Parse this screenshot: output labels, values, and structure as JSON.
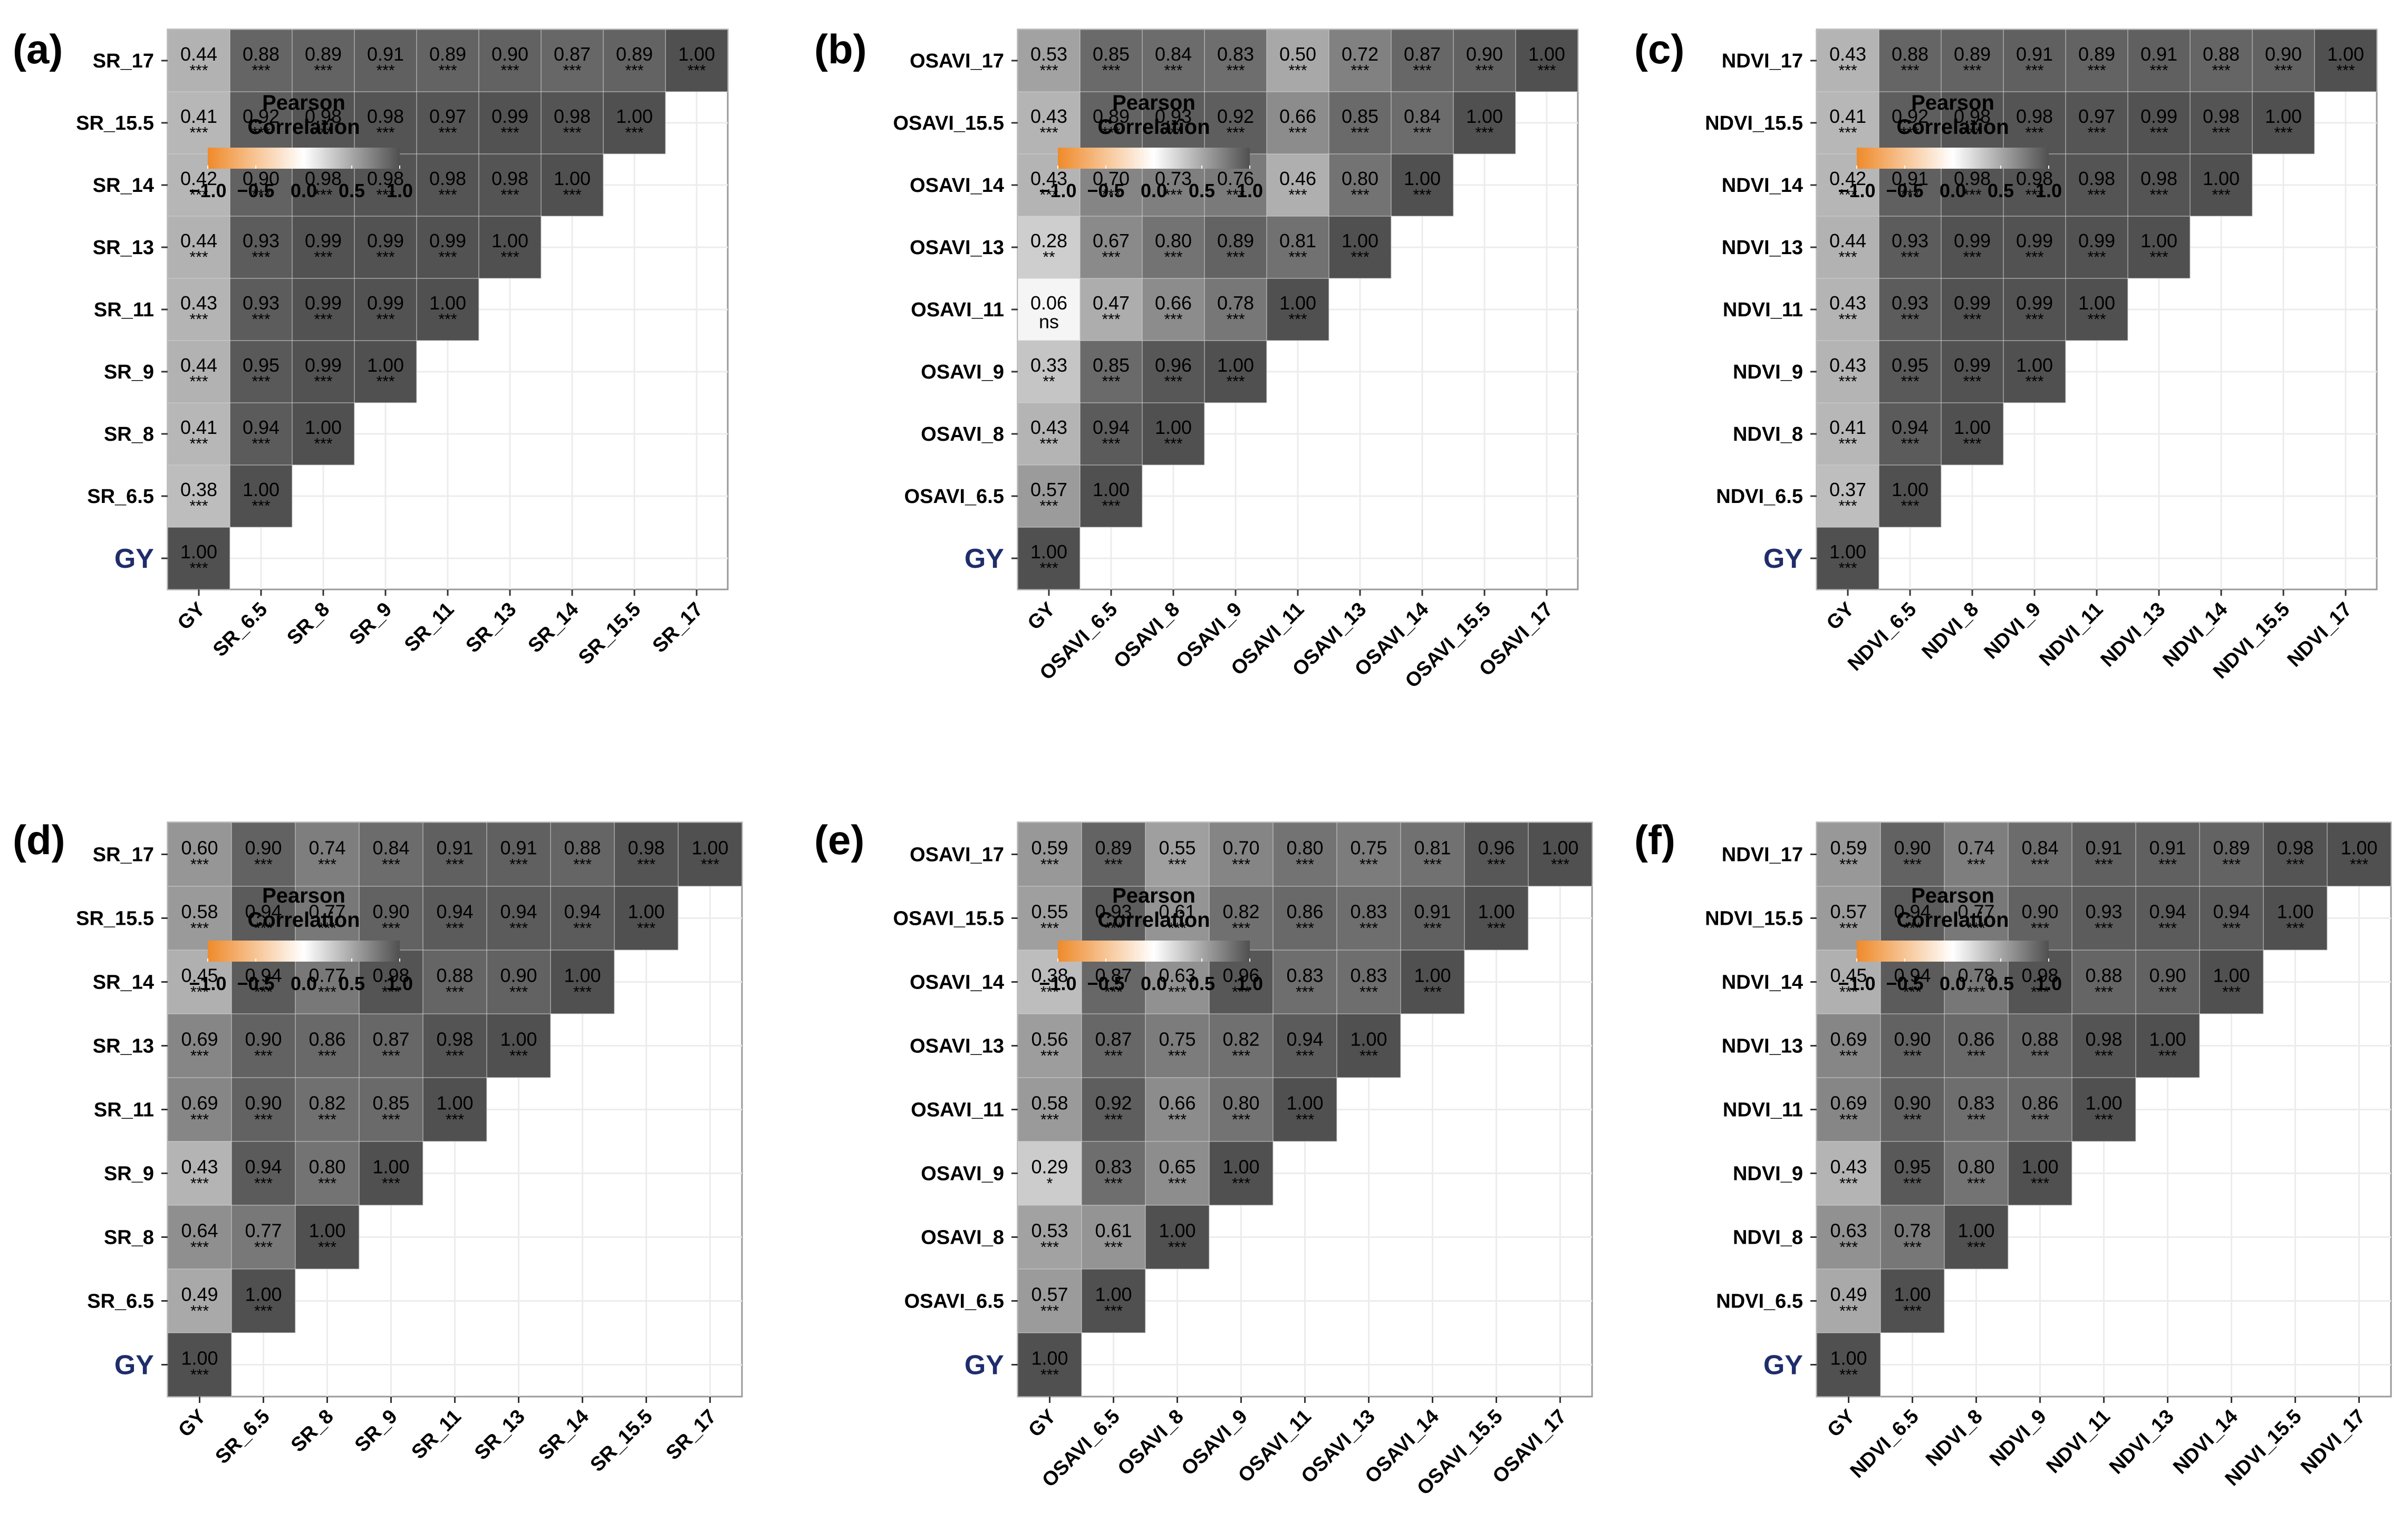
{
  "legend": {
    "title_line1": "Pearson",
    "title_line2": "Correlation",
    "ticks": [
      "−1.0",
      "−0.5",
      "0.0",
      "0.5",
      "1.0"
    ]
  },
  "colors": {
    "negative": "#ef8a2a",
    "zero": "#ffffff",
    "positive": "#505050",
    "y_label_target": "#1f2d6b"
  },
  "chart_data": [
    {
      "panel": "(a)",
      "type": "heatmap",
      "variables": [
        "GY",
        "SR_6.5",
        "SR_8",
        "SR_9",
        "SR_11",
        "SR_13",
        "SR_14",
        "SR_15.5",
        "SR_17"
      ],
      "values": [
        [
          1.0
        ],
        [
          0.38,
          1.0
        ],
        [
          0.41,
          0.94,
          1.0
        ],
        [
          0.44,
          0.95,
          0.99,
          1.0
        ],
        [
          0.43,
          0.93,
          0.99,
          0.99,
          1.0
        ],
        [
          0.44,
          0.93,
          0.99,
          0.99,
          0.99,
          1.0
        ],
        [
          0.42,
          0.9,
          0.98,
          0.98,
          0.98,
          0.98,
          1.0
        ],
        [
          0.41,
          0.92,
          0.98,
          0.98,
          0.97,
          0.99,
          0.98,
          1.0
        ],
        [
          0.44,
          0.88,
          0.89,
          0.91,
          0.89,
          0.9,
          0.87,
          0.89,
          1.0
        ]
      ],
      "significance": [
        [
          "***"
        ],
        [
          "***",
          "***"
        ],
        [
          "***",
          "***",
          "***"
        ],
        [
          "***",
          "***",
          "***",
          "***"
        ],
        [
          "***",
          "***",
          "***",
          "***",
          "***"
        ],
        [
          "***",
          "***",
          "***",
          "***",
          "***",
          "***"
        ],
        [
          "***",
          "***",
          "***",
          "***",
          "***",
          "***",
          "***"
        ],
        [
          "***",
          "***",
          "***",
          "***",
          "***",
          "***",
          "***",
          "***"
        ],
        [
          "***",
          "***",
          "***",
          "***",
          "***",
          "***",
          "***",
          "***",
          "***"
        ]
      ]
    },
    {
      "panel": "(b)",
      "type": "heatmap",
      "variables": [
        "GY",
        "OSAVI_6.5",
        "OSAVI_8",
        "OSAVI_9",
        "OSAVI_11",
        "OSAVI_13",
        "OSAVI_14",
        "OSAVI_15.5",
        "OSAVI_17"
      ],
      "values": [
        [
          1.0
        ],
        [
          0.57,
          1.0
        ],
        [
          0.43,
          0.94,
          1.0
        ],
        [
          0.33,
          0.85,
          0.96,
          1.0
        ],
        [
          0.06,
          0.47,
          0.66,
          0.78,
          1.0
        ],
        [
          0.28,
          0.67,
          0.8,
          0.89,
          0.81,
          1.0
        ],
        [
          0.43,
          0.7,
          0.73,
          0.76,
          0.46,
          0.8,
          1.0
        ],
        [
          0.43,
          0.89,
          0.93,
          0.92,
          0.66,
          0.85,
          0.84,
          1.0
        ],
        [
          0.53,
          0.85,
          0.84,
          0.83,
          0.5,
          0.72,
          0.87,
          0.9,
          1.0
        ]
      ],
      "significance": [
        [
          "***"
        ],
        [
          "***",
          "***"
        ],
        [
          "***",
          "***",
          "***"
        ],
        [
          "**",
          "***",
          "***",
          "***"
        ],
        [
          "ns",
          "***",
          "***",
          "***",
          "***"
        ],
        [
          "**",
          "***",
          "***",
          "***",
          "***",
          "***"
        ],
        [
          "***",
          "***",
          "***",
          "***",
          "***",
          "***",
          "***"
        ],
        [
          "***",
          "***",
          "***",
          "***",
          "***",
          "***",
          "***",
          "***"
        ],
        [
          "***",
          "***",
          "***",
          "***",
          "***",
          "***",
          "***",
          "***",
          "***"
        ]
      ]
    },
    {
      "panel": "(c)",
      "type": "heatmap",
      "variables": [
        "GY",
        "NDVI_6.5",
        "NDVI_8",
        "NDVI_9",
        "NDVI_11",
        "NDVI_13",
        "NDVI_14",
        "NDVI_15.5",
        "NDVI_17"
      ],
      "values": [
        [
          1.0
        ],
        [
          0.37,
          1.0
        ],
        [
          0.41,
          0.94,
          1.0
        ],
        [
          0.43,
          0.95,
          0.99,
          1.0
        ],
        [
          0.43,
          0.93,
          0.99,
          0.99,
          1.0
        ],
        [
          0.44,
          0.93,
          0.99,
          0.99,
          0.99,
          1.0
        ],
        [
          0.42,
          0.91,
          0.98,
          0.98,
          0.98,
          0.98,
          1.0
        ],
        [
          0.41,
          0.92,
          0.98,
          0.98,
          0.97,
          0.99,
          0.98,
          1.0
        ],
        [
          0.43,
          0.88,
          0.89,
          0.91,
          0.89,
          0.91,
          0.88,
          0.9,
          1.0
        ]
      ],
      "significance": [
        [
          "***"
        ],
        [
          "***",
          "***"
        ],
        [
          "***",
          "***",
          "***"
        ],
        [
          "***",
          "***",
          "***",
          "***"
        ],
        [
          "***",
          "***",
          "***",
          "***",
          "***"
        ],
        [
          "***",
          "***",
          "***",
          "***",
          "***",
          "***"
        ],
        [
          "***",
          "***",
          "***",
          "***",
          "***",
          "***",
          "***"
        ],
        [
          "***",
          "***",
          "***",
          "***",
          "***",
          "***",
          "***",
          "***"
        ],
        [
          "***",
          "***",
          "***",
          "***",
          "***",
          "***",
          "***",
          "***",
          "***"
        ]
      ]
    },
    {
      "panel": "(d)",
      "type": "heatmap",
      "variables": [
        "GY",
        "SR_6.5",
        "SR_8",
        "SR_9",
        "SR_11",
        "SR_13",
        "SR_14",
        "SR_15.5",
        "SR_17"
      ],
      "values": [
        [
          1.0
        ],
        [
          0.49,
          1.0
        ],
        [
          0.64,
          0.77,
          1.0
        ],
        [
          0.43,
          0.94,
          0.8,
          1.0
        ],
        [
          0.69,
          0.9,
          0.82,
          0.85,
          1.0
        ],
        [
          0.69,
          0.9,
          0.86,
          0.87,
          0.98,
          1.0
        ],
        [
          0.45,
          0.94,
          0.77,
          0.98,
          0.88,
          0.9,
          1.0
        ],
        [
          0.58,
          0.94,
          0.77,
          0.9,
          0.94,
          0.94,
          0.94,
          1.0
        ],
        [
          0.6,
          0.9,
          0.74,
          0.84,
          0.91,
          0.91,
          0.88,
          0.98,
          1.0
        ]
      ],
      "significance": [
        [
          "***"
        ],
        [
          "***",
          "***"
        ],
        [
          "***",
          "***",
          "***"
        ],
        [
          "***",
          "***",
          "***",
          "***"
        ],
        [
          "***",
          "***",
          "***",
          "***",
          "***"
        ],
        [
          "***",
          "***",
          "***",
          "***",
          "***",
          "***"
        ],
        [
          "***",
          "***",
          "***",
          "***",
          "***",
          "***",
          "***"
        ],
        [
          "***",
          "***",
          "***",
          "***",
          "***",
          "***",
          "***",
          "***"
        ],
        [
          "***",
          "***",
          "***",
          "***",
          "***",
          "***",
          "***",
          "***",
          "***"
        ]
      ]
    },
    {
      "panel": "(e)",
      "type": "heatmap",
      "variables": [
        "GY",
        "OSAVI_6.5",
        "OSAVI_8",
        "OSAVI_9",
        "OSAVI_11",
        "OSAVI_13",
        "OSAVI_14",
        "OSAVI_15.5",
        "OSAVI_17"
      ],
      "values": [
        [
          1.0
        ],
        [
          0.57,
          1.0
        ],
        [
          0.53,
          0.61,
          1.0
        ],
        [
          0.29,
          0.83,
          0.65,
          1.0
        ],
        [
          0.58,
          0.92,
          0.66,
          0.8,
          1.0
        ],
        [
          0.56,
          0.87,
          0.75,
          0.82,
          0.94,
          1.0
        ],
        [
          0.38,
          0.87,
          0.63,
          0.96,
          0.83,
          0.83,
          1.0
        ],
        [
          0.55,
          0.93,
          0.61,
          0.82,
          0.86,
          0.83,
          0.91,
          1.0
        ],
        [
          0.59,
          0.89,
          0.55,
          0.7,
          0.8,
          0.75,
          0.81,
          0.96,
          1.0
        ]
      ],
      "significance": [
        [
          "***"
        ],
        [
          "***",
          "***"
        ],
        [
          "***",
          "***",
          "***"
        ],
        [
          "*",
          "***",
          "***",
          "***"
        ],
        [
          "***",
          "***",
          "***",
          "***",
          "***"
        ],
        [
          "***",
          "***",
          "***",
          "***",
          "***",
          "***"
        ],
        [
          "***",
          "***",
          "***",
          "***",
          "***",
          "***",
          "***"
        ],
        [
          "***",
          "***",
          "***",
          "***",
          "***",
          "***",
          "***",
          "***"
        ],
        [
          "***",
          "***",
          "***",
          "***",
          "***",
          "***",
          "***",
          "***",
          "***"
        ]
      ]
    },
    {
      "panel": "(f)",
      "type": "heatmap",
      "variables": [
        "GY",
        "NDVI_6.5",
        "NDVI_8",
        "NDVI_9",
        "NDVI_11",
        "NDVI_13",
        "NDVI_14",
        "NDVI_15.5",
        "NDVI_17"
      ],
      "values": [
        [
          1.0
        ],
        [
          0.49,
          1.0
        ],
        [
          0.63,
          0.78,
          1.0
        ],
        [
          0.43,
          0.95,
          0.8,
          1.0
        ],
        [
          0.69,
          0.9,
          0.83,
          0.86,
          1.0
        ],
        [
          0.69,
          0.9,
          0.86,
          0.88,
          0.98,
          1.0
        ],
        [
          0.45,
          0.94,
          0.78,
          0.98,
          0.88,
          0.9,
          1.0
        ],
        [
          0.57,
          0.94,
          0.77,
          0.9,
          0.93,
          0.94,
          0.94,
          1.0
        ],
        [
          0.59,
          0.9,
          0.74,
          0.84,
          0.91,
          0.91,
          0.89,
          0.98,
          1.0
        ]
      ],
      "significance": [
        [
          "***"
        ],
        [
          "***",
          "***"
        ],
        [
          "***",
          "***",
          "***"
        ],
        [
          "***",
          "***",
          "***",
          "***"
        ],
        [
          "***",
          "***",
          "***",
          "***",
          "***"
        ],
        [
          "***",
          "***",
          "***",
          "***",
          "***",
          "***"
        ],
        [
          "***",
          "***",
          "***",
          "***",
          "***",
          "***",
          "***"
        ],
        [
          "***",
          "***",
          "***",
          "***",
          "***",
          "***",
          "***",
          "***"
        ],
        [
          "***",
          "***",
          "***",
          "***",
          "***",
          "***",
          "***",
          "***",
          "***"
        ]
      ]
    }
  ]
}
